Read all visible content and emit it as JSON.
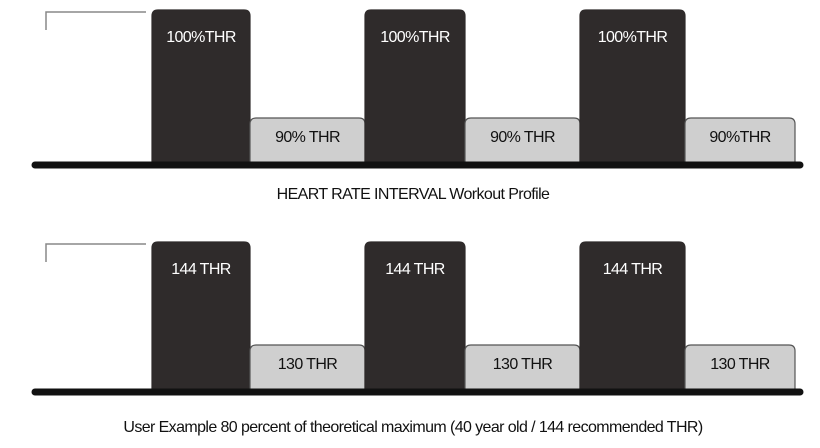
{
  "profiles": [
    {
      "blocks": [
        "100%THR",
        "90% THR",
        "100%THR",
        "90% THR",
        "100%THR",
        "90%THR"
      ],
      "caption": "HEART RATE INTERVAL Workout Profile"
    },
    {
      "blocks": [
        "144 THR",
        "130 THR",
        "144 THR",
        "130 THR",
        "144 THR",
        "130 THR"
      ],
      "caption": "User Example 80 percent of theoretical maximum (40 year old / 144 recommended THR)"
    }
  ]
}
